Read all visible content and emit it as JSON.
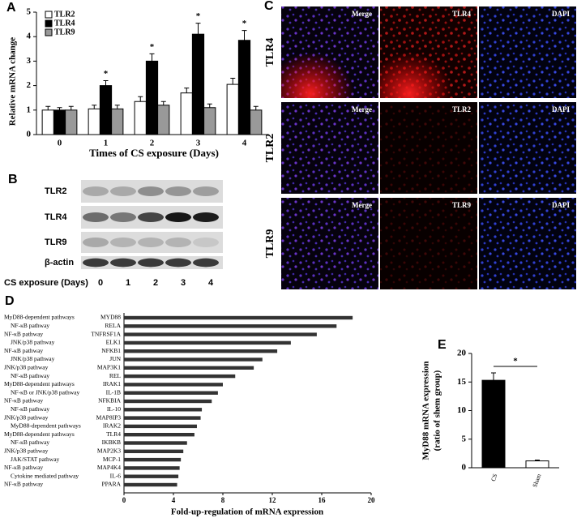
{
  "chart_data": [
    {
      "type": "bar",
      "panel": "A",
      "ylabel": "Relative mRNA change",
      "xlabel": "Times of CS exposure (Days)",
      "categories": [
        "0",
        "1",
        "2",
        "3",
        "4"
      ],
      "ylim": [
        0,
        5
      ],
      "yticks": [
        0,
        1,
        2,
        3,
        4,
        5
      ],
      "series": [
        {
          "name": "TLR2",
          "color": "#ffffff",
          "values": [
            1.0,
            1.05,
            1.35,
            1.7,
            2.05
          ],
          "errors": [
            0.15,
            0.15,
            0.2,
            0.2,
            0.25
          ]
        },
        {
          "name": "TLR4",
          "color": "#000000",
          "values": [
            1.0,
            2.0,
            3.0,
            4.1,
            3.85
          ],
          "errors": [
            0.1,
            0.2,
            0.3,
            0.45,
            0.4
          ],
          "significance": [
            null,
            "*",
            "*",
            "*",
            "*"
          ]
        },
        {
          "name": "TLR9",
          "color": "#999999",
          "values": [
            1.0,
            1.05,
            1.2,
            1.1,
            1.0
          ],
          "errors": [
            0.15,
            0.15,
            0.15,
            0.15,
            0.15
          ]
        }
      ]
    },
    {
      "type": "barh",
      "panel": "D",
      "xlabel": "Fold-up-regulation of mRNA expression",
      "categories": [
        "MYD88",
        "RELA",
        "TNFRSF1A",
        "ELK1",
        "NFKB1",
        "JUN",
        "MAP3K1",
        "REL",
        "IRAK1",
        "IL-1B",
        "NFKBIA",
        "IL-10",
        "MAP8IP3",
        "IRAK2",
        "TLR4",
        "IKBKB",
        "MAP2K3",
        "MCP-1",
        "MAP4K4",
        "IL-6",
        "PPARA"
      ],
      "pathways": [
        "MyD88-dependent pathways",
        "NF-κB pathway",
        "NF-κB pathway",
        "JNK/p38 pathway",
        "NF-κB pathway",
        "JNK/p38 pathway",
        "JNK/p38 pathway",
        "NF-κB pathway",
        "MyD88-dependent pathways",
        "NF-κB or JNK/p38 pathway",
        "NF-κB pathway",
        "NF-κB pathway",
        "JNK/p38 pathway",
        "MyD88-dependent pathways",
        "MyD88-dependent pathways",
        "NF-κB pathway",
        "JNK/p38 pathway",
        "JAK/STAT pathway",
        "NF-κB pathway",
        "Cytokine mediated pathway",
        "NF-κB pathway"
      ],
      "values": [
        18.5,
        17.2,
        15.6,
        13.5,
        12.4,
        11.2,
        10.5,
        9.0,
        8.0,
        7.6,
        7.1,
        6.3,
        6.2,
        5.9,
        5.7,
        5.1,
        4.8,
        4.6,
        4.5,
        4.4,
        4.3
      ],
      "color": "#333333",
      "xlim": [
        0,
        20
      ],
      "xticks": [
        0,
        4,
        8,
        12,
        16,
        20
      ]
    },
    {
      "type": "bar",
      "panel": "E",
      "ylabel": [
        "MyD88 mRNA expression",
        "(ratio of shem group)"
      ],
      "categories": [
        "CS",
        "Sham"
      ],
      "values": [
        15.3,
        1.2
      ],
      "errors": [
        1.3,
        0.15
      ],
      "colors": [
        "#000000",
        "#ffffff"
      ],
      "significance": "*",
      "ylim": [
        0,
        20
      ],
      "yticks": [
        0,
        5,
        10,
        15,
        20
      ]
    }
  ],
  "blot": {
    "panel": "B",
    "rows": [
      "TLR2",
      "TLR4",
      "TLR9",
      "β-actin"
    ],
    "xlabel": "CS exposure (Days)",
    "lanes": [
      "0",
      "1",
      "2",
      "3",
      "4"
    ]
  },
  "micrographs": {
    "panel": "C",
    "rows": [
      {
        "label": "TLR4",
        "tiles": [
          "Merge",
          "TLR4",
          "DAPI"
        ]
      },
      {
        "label": "TLR2",
        "tiles": [
          "Merge",
          "TLR2",
          "DAPI"
        ]
      },
      {
        "label": "TLR9",
        "tiles": [
          "Merge",
          "TLR9",
          "DAPI"
        ]
      }
    ]
  }
}
